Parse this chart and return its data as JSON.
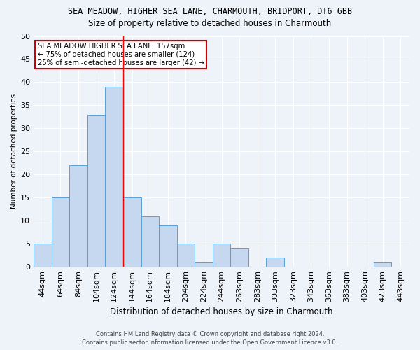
{
  "title1": "SEA MEADOW, HIGHER SEA LANE, CHARMOUTH, BRIDPORT, DT6 6BB",
  "title2": "Size of property relative to detached houses in Charmouth",
  "xlabel": "Distribution of detached houses by size in Charmouth",
  "ylabel": "Number of detached properties",
  "categories": [
    "44sqm",
    "64sqm",
    "84sqm",
    "104sqm",
    "124sqm",
    "144sqm",
    "164sqm",
    "184sqm",
    "204sqm",
    "224sqm",
    "244sqm",
    "263sqm",
    "283sqm",
    "303sqm",
    "323sqm",
    "343sqm",
    "363sqm",
    "383sqm",
    "403sqm",
    "423sqm",
    "443sqm"
  ],
  "values": [
    5,
    15,
    22,
    33,
    39,
    15,
    11,
    9,
    5,
    1,
    5,
    4,
    0,
    2,
    0,
    0,
    0,
    0,
    0,
    1,
    0
  ],
  "bar_color": "#c5d8f0",
  "bar_edge_color": "#5a9fd4",
  "red_line_index": 4.5,
  "annotation_line1": "SEA MEADOW HIGHER SEA LANE: 157sqm",
  "annotation_line2": "← 75% of detached houses are smaller (124)",
  "annotation_line3": "25% of semi-detached houses are larger (42) →",
  "annotation_box_color": "#ffffff",
  "annotation_box_edge": "#cc0000",
  "footer1": "Contains HM Land Registry data © Crown copyright and database right 2024.",
  "footer2": "Contains public sector information licensed under the Open Government Licence v3.0.",
  "bg_color": "#eef2f9",
  "grid_color": "#ffffff",
  "ylim": [
    0,
    50
  ],
  "yticks": [
    0,
    5,
    10,
    15,
    20,
    25,
    30,
    35,
    40,
    45,
    50
  ]
}
